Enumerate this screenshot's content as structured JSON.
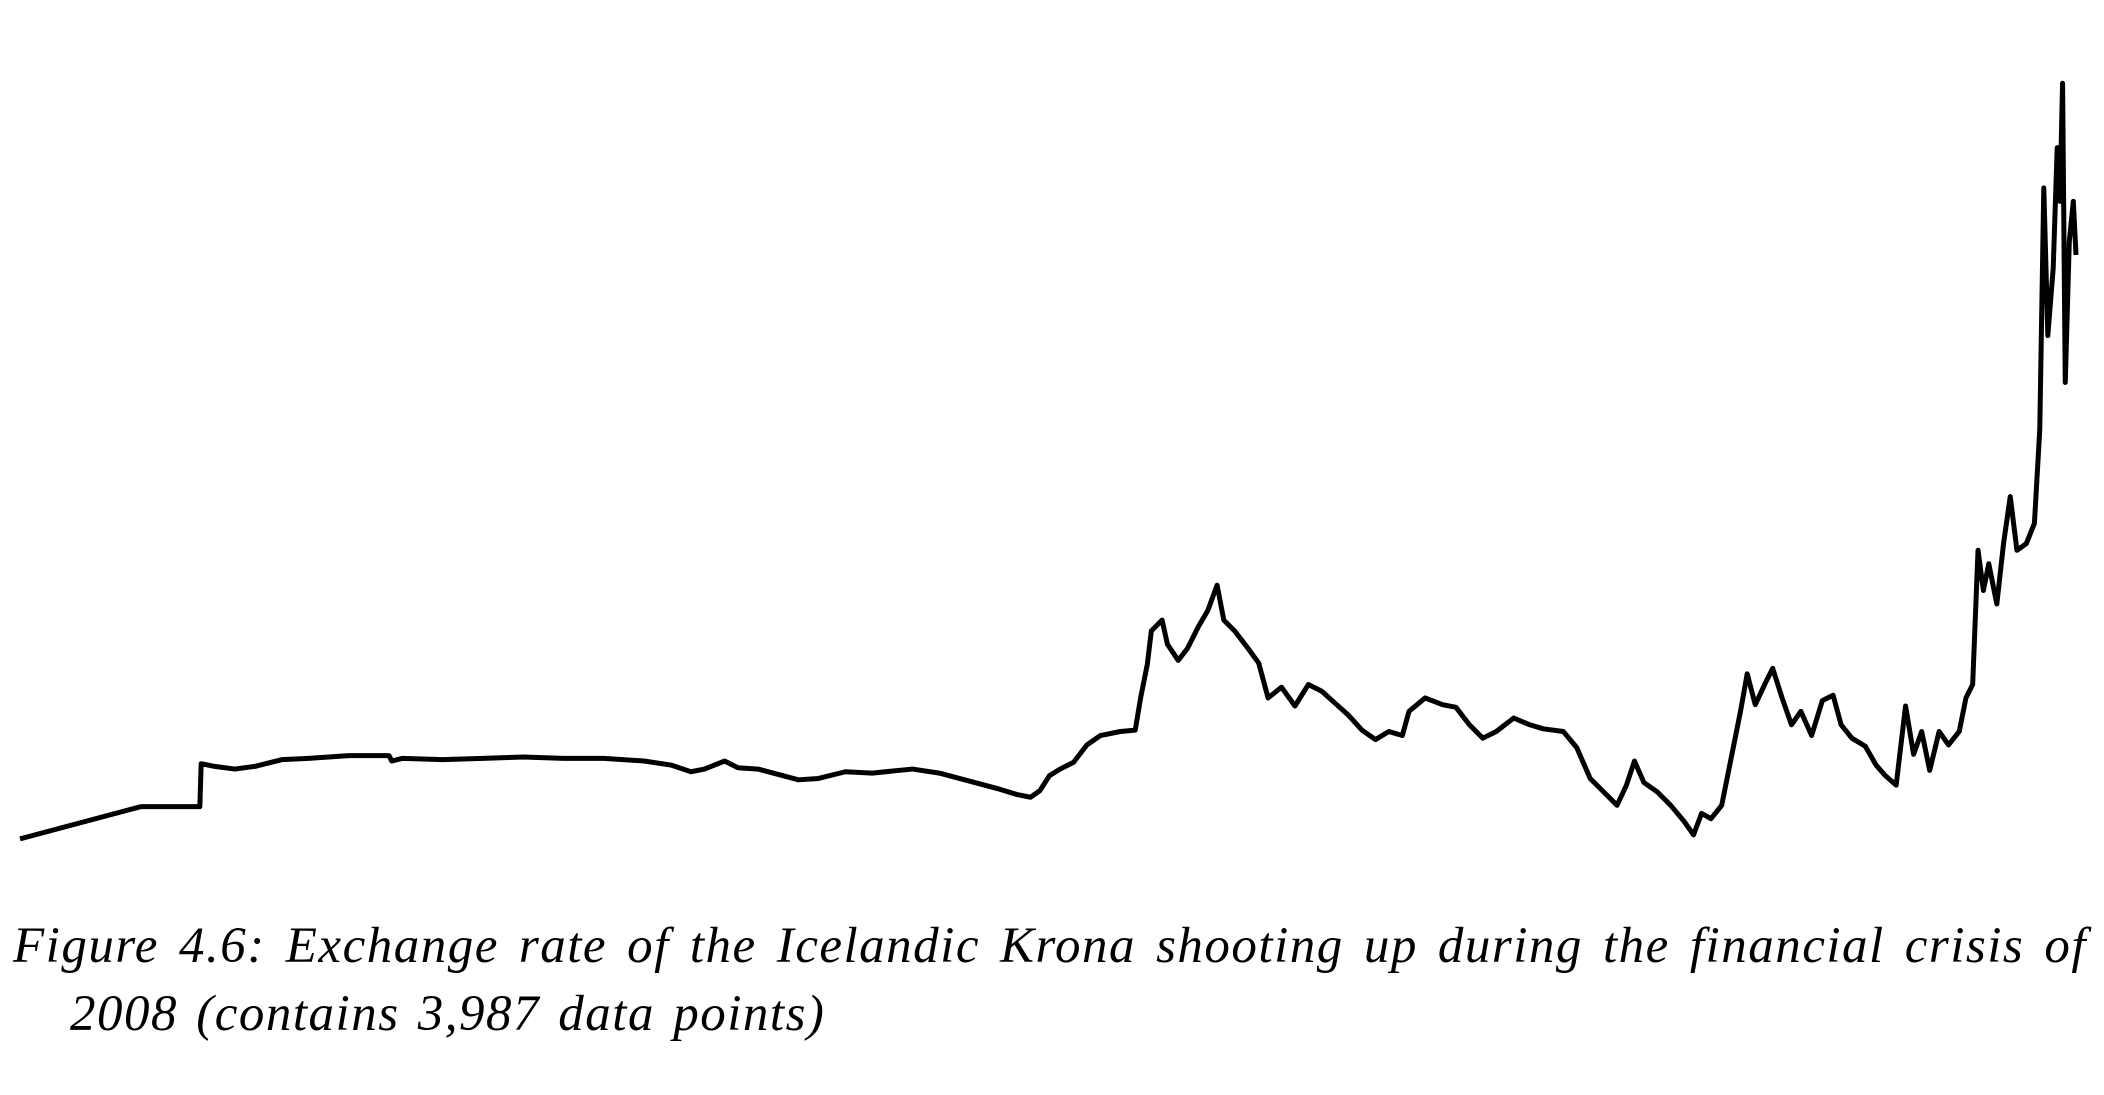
{
  "chart_data": {
    "type": "line",
    "caption": "Figure 4.6: Exchange rate of the Icelandic Krona shooting up during the financial crisis of 2008 (contains 3,987 data points)",
    "color": "#000000",
    "xlim": [
      0,
      1532
    ],
    "ylim": [
      0,
      640
    ],
    "x": [
      0,
      90,
      134,
      135,
      145,
      160,
      175,
      195,
      215,
      245,
      275,
      277,
      285,
      315,
      345,
      375,
      405,
      435,
      465,
      485,
      500,
      510,
      525,
      535,
      550,
      565,
      580,
      595,
      615,
      635,
      665,
      685,
      700,
      715,
      730,
      743,
      753,
      760,
      767,
      775,
      785,
      795,
      805,
      820,
      831,
      835,
      840,
      843,
      851,
      855,
      863,
      870,
      878,
      885,
      892,
      897,
      905,
      915,
      923,
      930,
      940,
      950,
      960,
      970,
      980,
      990,
      1000,
      1010,
      1020,
      1030,
      1035,
      1047,
      1060,
      1070,
      1080,
      1090,
      1100,
      1113,
      1125,
      1135,
      1150,
      1160,
      1170,
      1180,
      1190,
      1197,
      1203,
      1210,
      1220,
      1230,
      1240,
      1247,
      1253,
      1260,
      1268,
      1275,
      1282,
      1287,
      1293,
      1300,
      1306,
      1313,
      1320,
      1327,
      1335,
      1343,
      1351,
      1357,
      1365,
      1375,
      1383,
      1390,
      1398,
      1405,
      1411,
      1417,
      1423,
      1430,
      1437,
      1445,
      1450,
      1455,
      1459,
      1463,
      1467,
      1473,
      1478,
      1483,
      1488,
      1495,
      1501,
      1505,
      1508,
      1511,
      1515,
      1518,
      1520,
      1522,
      1524,
      1527,
      1530,
      1532
    ],
    "values": [
      15,
      39,
      39,
      71,
      69,
      67,
      69,
      74,
      75,
      77,
      77,
      73,
      75,
      74,
      75,
      76,
      75,
      75,
      73,
      70,
      65,
      67,
      73,
      68,
      67,
      63,
      59,
      60,
      65,
      64,
      67,
      64,
      60,
      56,
      52,
      48,
      46,
      51,
      62,
      67,
      72,
      85,
      92,
      95,
      96,
      120,
      145,
      170,
      178,
      160,
      148,
      157,
      173,
      185,
      204,
      178,
      170,
      157,
      146,
      120,
      128,
      114,
      130,
      125,
      116,
      107,
      96,
      89,
      95,
      92,
      110,
      120,
      115,
      113,
      100,
      90,
      95,
      105,
      100,
      97,
      95,
      83,
      60,
      50,
      40,
      55,
      73,
      57,
      50,
      40,
      28,
      18,
      34,
      30,
      40,
      75,
      110,
      138,
      115,
      130,
      142,
      120,
      100,
      110,
      92,
      118,
      122,
      100,
      90,
      84,
      70,
      62,
      55,
      114,
      78,
      95,
      66,
      95,
      85,
      95,
      120,
      130,
      230,
      200,
      220,
      190,
      235,
      270,
      230,
      235,
      250,
      320,
      500,
      390,
      440,
      530,
      490,
      578,
      355,
      460,
      490,
      450
    ]
  }
}
